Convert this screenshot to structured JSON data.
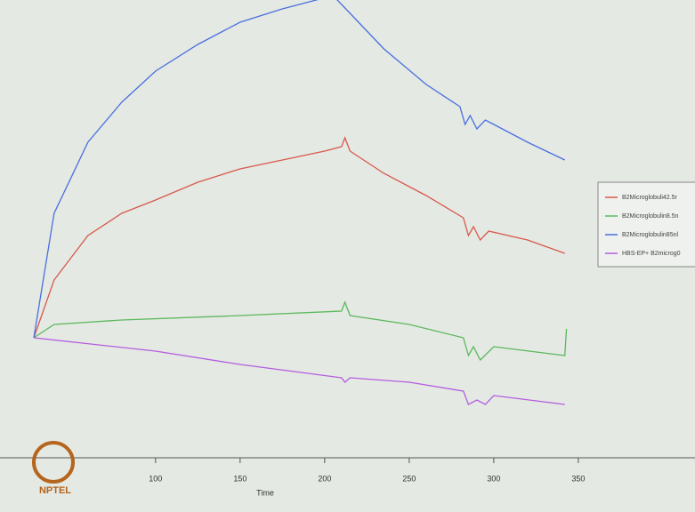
{
  "chart_data": {
    "type": "line",
    "xlabel": "Time",
    "xlim": [
      8,
      419
    ],
    "ylim": [
      0,
      103
    ],
    "xticks": [
      100,
      150,
      200,
      250,
      300,
      350
    ],
    "watermark": "NPTEL",
    "series": [
      {
        "name": "B2Microglobuli42.5r",
        "color": "#d9584c",
        "x": [
          28,
          40,
          60,
          80,
          100,
          125,
          150,
          175,
          200,
          210,
          212,
          215,
          235,
          260,
          282,
          285,
          288,
          292,
          297,
          320,
          342
        ],
        "values": [
          27,
          40,
          50,
          55,
          58,
          62,
          65,
          67,
          69,
          70,
          72,
          69,
          64,
          59,
          54,
          50,
          52,
          49,
          51,
          49,
          46
        ]
      },
      {
        "name": "B2Microglobulin8.5n",
        "color": "#5cb85c",
        "x": [
          28,
          40,
          80,
          150,
          210,
          212,
          215,
          250,
          282,
          285,
          288,
          292,
          300,
          342,
          343
        ],
        "values": [
          27,
          30,
          31,
          32,
          33,
          35,
          32,
          30,
          27,
          23,
          25,
          22,
          25,
          23,
          29
        ]
      },
      {
        "name": "B2Microglobulin85nl",
        "color": "#4a6fe0",
        "x": [
          28,
          40,
          60,
          80,
          100,
          125,
          150,
          175,
          205,
          215,
          235,
          260,
          280,
          283,
          286,
          290,
          295,
          300,
          320,
          342
        ],
        "values": [
          27,
          55,
          71,
          80,
          87,
          93,
          98,
          101,
          104,
          100,
          92,
          84,
          79,
          75,
          77,
          74,
          76,
          75,
          71,
          67
        ]
      },
      {
        "name": "HBS-EP+ B2microg0",
        "color": "#b45ce0",
        "x": [
          28,
          100,
          150,
          210,
          212,
          215,
          250,
          282,
          285,
          290,
          295,
          300,
          342
        ],
        "values": [
          27,
          24,
          21,
          18,
          17,
          18,
          17,
          15,
          12,
          13,
          12,
          14,
          12
        ]
      }
    ]
  }
}
